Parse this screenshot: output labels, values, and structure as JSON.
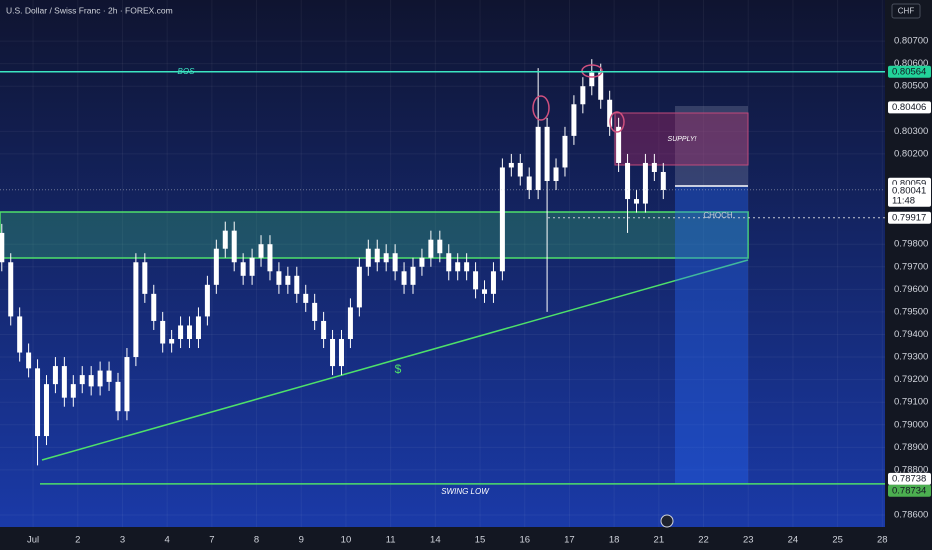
{
  "chart_data": {
    "type": "candlestick",
    "title": "U.S. Dollar / Swiss Franc · 2h · FOREX.com",
    "currency": "CHF",
    "color": "#ffffff",
    "xlim": [
      -0.74,
      19.06
    ],
    "ylim": [
      0.78547,
      0.80882
    ],
    "xticks": [
      {
        "value": 0,
        "label": "Jul"
      },
      {
        "value": 1,
        "label": "2"
      },
      {
        "value": 2,
        "label": "3"
      },
      {
        "value": 3,
        "label": "4"
      },
      {
        "value": 4,
        "label": "7"
      },
      {
        "value": 5,
        "label": "8"
      },
      {
        "value": 6,
        "label": "9"
      },
      {
        "value": 7,
        "label": "10"
      },
      {
        "value": 8,
        "label": "11"
      },
      {
        "value": 9,
        "label": "14"
      },
      {
        "value": 10,
        "label": "15"
      },
      {
        "value": 11,
        "label": "16"
      },
      {
        "value": 12,
        "label": "17"
      },
      {
        "value": 13,
        "label": "18"
      },
      {
        "value": 14,
        "label": "21"
      },
      {
        "value": 15,
        "label": "22"
      },
      {
        "value": 16,
        "label": "23"
      },
      {
        "value": 17,
        "label": "24"
      },
      {
        "value": 18,
        "label": "25"
      },
      {
        "value": 19,
        "label": "28"
      }
    ],
    "yticks": [
      {
        "value": 0.807,
        "label": "0.80700"
      },
      {
        "value": 0.806,
        "label": "0.80600"
      },
      {
        "value": 0.805,
        "label": "0.80500"
      },
      {
        "value": 0.803,
        "label": "0.80300"
      },
      {
        "value": 0.802,
        "label": "0.80200"
      },
      {
        "value": 0.798,
        "label": "0.79800"
      },
      {
        "value": 0.797,
        "label": "0.79700"
      },
      {
        "value": 0.796,
        "label": "0.79600"
      },
      {
        "value": 0.795,
        "label": "0.79500"
      },
      {
        "value": 0.794,
        "label": "0.79400"
      },
      {
        "value": 0.793,
        "label": "0.79300"
      },
      {
        "value": 0.792,
        "label": "0.79200"
      },
      {
        "value": 0.791,
        "label": "0.79100"
      },
      {
        "value": 0.79,
        "label": "0.79000"
      },
      {
        "value": 0.789,
        "label": "0.78900"
      },
      {
        "value": 0.788,
        "label": "0.78800"
      },
      {
        "value": 0.786,
        "label": "0.78600"
      }
    ],
    "x": [
      -0.7,
      -0.5,
      -0.3,
      -0.1,
      0.1,
      0.3,
      0.5,
      0.7,
      0.9,
      1.1,
      1.3,
      1.5,
      1.7,
      1.9,
      2.1,
      2.3,
      2.5,
      2.7,
      2.9,
      3.1,
      3.3,
      3.5,
      3.7,
      3.9,
      4.1,
      4.3,
      4.5,
      4.7,
      4.9,
      5.1,
      5.3,
      5.5,
      5.7,
      5.9,
      6.1,
      6.3,
      6.5,
      6.7,
      6.9,
      7.1,
      7.3,
      7.5,
      7.7,
      7.9,
      8.1,
      8.3,
      8.5,
      8.7,
      8.9,
      9.1,
      9.3,
      9.5,
      9.7,
      9.9,
      10.1,
      10.3,
      10.5,
      10.7,
      10.9,
      11.1,
      11.3,
      11.5,
      11.7,
      11.9,
      12.1,
      12.3,
      12.5,
      12.7,
      12.9,
      13.1,
      13.3,
      13.5,
      13.7,
      13.9,
      14.1
    ],
    "open": [
      0.7985,
      0.7972,
      0.7948,
      0.7932,
      0.7925,
      0.7895,
      0.7918,
      0.7926,
      0.7912,
      0.7918,
      0.7922,
      0.7917,
      0.7924,
      0.7919,
      0.7906,
      0.793,
      0.7972,
      0.7958,
      0.7946,
      0.7936,
      0.7938,
      0.7944,
      0.7938,
      0.7948,
      0.7962,
      0.7978,
      0.7986,
      0.7972,
      0.7966,
      0.7974,
      0.798,
      0.7968,
      0.7962,
      0.7966,
      0.7958,
      0.7954,
      0.7946,
      0.7938,
      0.7926,
      0.7938,
      0.7952,
      0.797,
      0.7978,
      0.7972,
      0.7976,
      0.7968,
      0.7962,
      0.797,
      0.7974,
      0.7982,
      0.7976,
      0.7968,
      0.7972,
      0.7968,
      0.796,
      0.7958,
      0.7968,
      0.8014,
      0.8016,
      0.801,
      0.8004,
      0.8032,
      0.8008,
      0.8014,
      0.8028,
      0.8042,
      0.805,
      0.8056,
      0.8044,
      0.8032,
      0.8016,
      0.8,
      0.7998,
      0.8016,
      0.8012
    ],
    "high": [
      0.7989,
      0.7976,
      0.7952,
      0.7936,
      0.7929,
      0.7922,
      0.793,
      0.793,
      0.7922,
      0.7926,
      0.7926,
      0.7928,
      0.7928,
      0.7923,
      0.7934,
      0.7976,
      0.7976,
      0.7962,
      0.795,
      0.7942,
      0.7948,
      0.7948,
      0.7952,
      0.7966,
      0.7982,
      0.799,
      0.799,
      0.7976,
      0.7978,
      0.7984,
      0.7984,
      0.7972,
      0.797,
      0.797,
      0.7962,
      0.7958,
      0.795,
      0.7942,
      0.7942,
      0.7956,
      0.7974,
      0.7982,
      0.7982,
      0.798,
      0.798,
      0.7972,
      0.7974,
      0.7978,
      0.7986,
      0.7986,
      0.798,
      0.7976,
      0.7976,
      0.7972,
      0.7964,
      0.7972,
      0.8018,
      0.802,
      0.802,
      0.8014,
      0.8058,
      0.8036,
      0.8018,
      0.8032,
      0.8046,
      0.8054,
      0.8062,
      0.806,
      0.8048,
      0.8036,
      0.802,
      0.8004,
      0.802,
      0.802,
      0.8016
    ],
    "low": [
      0.7968,
      0.7944,
      0.7928,
      0.7921,
      0.7882,
      0.7891,
      0.7914,
      0.7908,
      0.7908,
      0.7914,
      0.7913,
      0.7913,
      0.7915,
      0.7902,
      0.7902,
      0.7926,
      0.7954,
      0.7942,
      0.7932,
      0.7932,
      0.7934,
      0.7934,
      0.7934,
      0.7944,
      0.7958,
      0.7974,
      0.7968,
      0.7962,
      0.7962,
      0.797,
      0.7964,
      0.7958,
      0.7958,
      0.7954,
      0.795,
      0.7942,
      0.7934,
      0.7922,
      0.7922,
      0.7934,
      0.7948,
      0.7966,
      0.7968,
      0.7968,
      0.7964,
      0.7958,
      0.7958,
      0.7966,
      0.797,
      0.7972,
      0.7964,
      0.7964,
      0.7964,
      0.7956,
      0.7954,
      0.7954,
      0.7964,
      0.801,
      0.8006,
      0.8,
      0.8,
      0.795,
      0.8004,
      0.801,
      0.8024,
      0.8038,
      0.8046,
      0.804,
      0.8028,
      0.8012,
      0.7985,
      0.7994,
      0.7994,
      0.8008,
      0.8
    ],
    "close": [
      0.7972,
      0.7948,
      0.7932,
      0.7925,
      0.7895,
      0.7918,
      0.7926,
      0.7912,
      0.7918,
      0.7922,
      0.7917,
      0.7924,
      0.7919,
      0.7906,
      0.793,
      0.7972,
      0.7958,
      0.7946,
      0.7936,
      0.7938,
      0.7944,
      0.7938,
      0.7948,
      0.7962,
      0.7978,
      0.7986,
      0.7972,
      0.7966,
      0.7974,
      0.798,
      0.7968,
      0.7962,
      0.7966,
      0.7958,
      0.7954,
      0.7946,
      0.7938,
      0.7926,
      0.7938,
      0.7952,
      0.797,
      0.7978,
      0.7972,
      0.7976,
      0.7968,
      0.7962,
      0.797,
      0.7974,
      0.7982,
      0.7976,
      0.7968,
      0.7972,
      0.7968,
      0.796,
      0.7958,
      0.7968,
      0.8014,
      0.8016,
      0.801,
      0.8004,
      0.8032,
      0.8008,
      0.8014,
      0.8028,
      0.8042,
      0.805,
      0.8056,
      0.8044,
      0.8032,
      0.8016,
      0.8,
      0.7998,
      0.8016,
      0.8012,
      0.8004
    ],
    "annotations": {
      "bos": "BOS",
      "supply": "SUPPLY!",
      "choch": "CHOCH",
      "swing_low": "SWING LOW",
      "dollar": "$"
    },
    "price_labels": [
      {
        "value": 0.80564,
        "bg": "#22d39a",
        "fg": "#131722"
      },
      {
        "value": 0.80406,
        "bg": "#ffffff",
        "fg": "#131722"
      },
      {
        "value": 0.80059,
        "bg": "#ffffff",
        "fg": "#131722"
      },
      {
        "value": 0.80041,
        "bg": "#ffffff",
        "fg": "#131722"
      },
      {
        "value": 0.79917,
        "bg": "#ffffff",
        "fg": "#131722"
      },
      {
        "value": 0.78738,
        "bg": "#ffffff",
        "fg": "#131722"
      },
      {
        "value": 0.78734,
        "bg": "#4caf50",
        "fg": "#131722"
      }
    ],
    "countdown": "11:48"
  }
}
